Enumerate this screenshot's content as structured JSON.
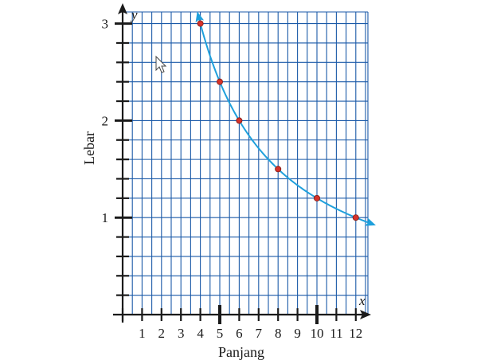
{
  "chart_data": {
    "type": "line",
    "title": "",
    "xlabel": "Panjang",
    "ylabel": "Lebar",
    "x_axis_var": "x",
    "y_axis_var": "y",
    "xlim": [
      0,
      12.5
    ],
    "ylim": [
      0,
      3.1
    ],
    "grid": true,
    "x_ticks": [
      1,
      2,
      3,
      4,
      5,
      6,
      7,
      8,
      9,
      10,
      11,
      12
    ],
    "x_tick_labels": [
      "1",
      "2",
      "3",
      "4",
      "5",
      "6",
      "7",
      "8",
      "9",
      "10",
      "11",
      "12"
    ],
    "y_ticks": [
      1,
      2,
      3
    ],
    "y_tick_labels": [
      "1",
      "2",
      "3"
    ],
    "series": [
      {
        "type": "curve",
        "formula": "y = 12 / x",
        "x_range": [
          3.9,
          12.8
        ],
        "color": "#1fa0dc"
      },
      {
        "type": "points",
        "x": [
          4,
          5,
          6,
          8,
          10,
          12
        ],
        "y": [
          3,
          2.4,
          2,
          1.5,
          1.2,
          1
        ],
        "color": "#d6322a"
      }
    ],
    "colors": {
      "grid": "#1b5aa8",
      "axis": "#1a1a1a",
      "curve": "#1fa0dc",
      "point": "#d6322a"
    }
  },
  "ui": {
    "cursor_icon": "mouse-pointer-icon"
  }
}
